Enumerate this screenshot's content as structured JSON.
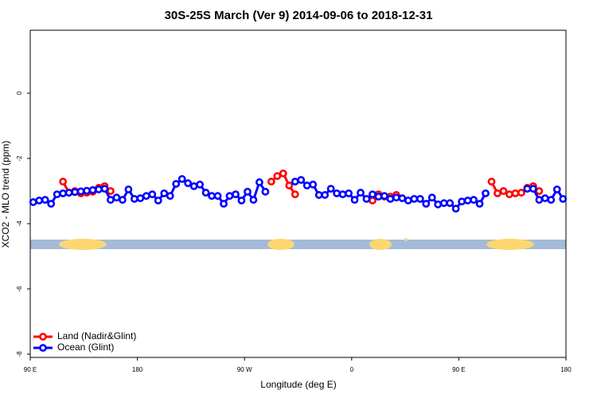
{
  "chart_data": {
    "type": "line",
    "title": "30S-25S March (Ver 9)   2014-09-06 to 2018-12-31",
    "xlabel": "Longitude (deg E)",
    "ylabel": "XCO2 - MLO trend (ppm)",
    "xlim": [
      90,
      540
    ],
    "ylim": [
      -8.1,
      1.93
    ],
    "xticks": [
      {
        "value": 90,
        "label": "90 E"
      },
      180,
      {
        "value": 270,
        "label": "90 W"
      },
      {
        "value": 360,
        "label": "0"
      },
      {
        "value": 450,
        "label": "90 E"
      },
      {
        "value": 540,
        "label": "180"
      }
    ],
    "yticks": [
      -8,
      -6,
      -4,
      -2,
      0
    ],
    "legend": "bottom-left",
    "x": [
      92.5,
      97.5,
      102.5,
      107.5,
      112.5,
      117.5,
      122.5,
      127.5,
      132.5,
      137.5,
      142.5,
      147.5,
      152.5,
      157.5,
      162.5,
      167.5,
      172.5,
      177.5,
      182.5,
      187.5,
      192.5,
      197.5,
      202.5,
      207.5,
      212.5,
      217.5,
      222.5,
      227.5,
      232.5,
      237.5,
      242.5,
      247.5,
      252.5,
      257.5,
      262.5,
      267.5,
      272.5,
      277.5,
      282.5,
      287.5,
      292.5,
      297.5,
      302.5,
      307.5,
      312.5,
      317.5,
      322.5,
      327.5,
      332.5,
      337.5,
      342.5,
      347.5,
      352.5,
      357.5,
      362.5,
      367.5,
      372.5,
      377.5,
      382.5,
      387.5,
      392.5,
      397.5,
      402.5,
      407.5,
      412.5,
      417.5,
      422.5,
      427.5,
      432.5,
      437.5,
      442.5,
      447.5,
      452.5,
      457.5,
      462.5,
      467.5,
      472.5,
      477.5,
      482.5,
      487.5,
      492.5,
      497.5,
      502.5,
      507.5,
      512.5,
      517.5,
      522.5,
      527.5,
      532.5,
      537.5
    ],
    "series": [
      {
        "name": "Land (Nadir&Glint)",
        "color": "#ff0000",
        "values": [
          null,
          null,
          null,
          null,
          null,
          -2.71,
          -3.05,
          -3.0,
          -3.07,
          -3.05,
          -3.02,
          -2.9,
          -2.85,
          -3.0,
          null,
          null,
          null,
          null,
          null,
          null,
          null,
          null,
          null,
          null,
          null,
          null,
          null,
          null,
          null,
          null,
          null,
          null,
          null,
          null,
          null,
          null,
          null,
          null,
          null,
          null,
          -2.71,
          -2.54,
          -2.46,
          -2.83,
          -3.1,
          null,
          null,
          null,
          null,
          null,
          null,
          null,
          null,
          null,
          null,
          null,
          null,
          -3.29,
          -3.1,
          -3.17,
          -3.17,
          -3.12,
          null,
          null,
          null,
          null,
          null,
          null,
          null,
          null,
          null,
          null,
          null,
          null,
          null,
          null,
          null,
          -2.71,
          -3.07,
          -3.0,
          -3.1,
          -3.07,
          -3.05,
          -2.9,
          -2.85,
          -3.0,
          null,
          null,
          null,
          null
        ]
      },
      {
        "name": "Ocean (Glint)",
        "color": "#0000ff",
        "values": [
          -3.34,
          -3.29,
          -3.27,
          -3.39,
          -3.1,
          -3.07,
          -3.05,
          -3.03,
          -3.01,
          -2.99,
          -2.97,
          -2.95,
          -2.93,
          -3.27,
          -3.2,
          -3.27,
          -2.95,
          -3.24,
          -3.22,
          -3.15,
          -3.1,
          -3.29,
          -3.07,
          -3.15,
          -2.78,
          -2.63,
          -2.76,
          -2.85,
          -2.8,
          -3.05,
          -3.15,
          -3.15,
          -3.39,
          -3.15,
          -3.1,
          -3.29,
          -3.02,
          -3.27,
          -2.73,
          -3.02,
          null,
          null,
          null,
          null,
          -2.71,
          -2.66,
          -2.83,
          -2.8,
          -3.12,
          -3.12,
          -2.93,
          -3.07,
          -3.1,
          -3.07,
          -3.27,
          -3.05,
          -3.24,
          -3.1,
          -3.17,
          -3.15,
          -3.24,
          -3.2,
          -3.22,
          -3.29,
          -3.24,
          -3.24,
          -3.39,
          -3.2,
          -3.41,
          -3.37,
          -3.37,
          -3.54,
          -3.32,
          -3.29,
          -3.27,
          -3.39,
          -3.07,
          null,
          null,
          null,
          null,
          null,
          null,
          -2.93,
          -2.93,
          -3.27,
          -3.22,
          -3.27,
          -2.95,
          -3.24
        ]
      }
    ]
  }
}
